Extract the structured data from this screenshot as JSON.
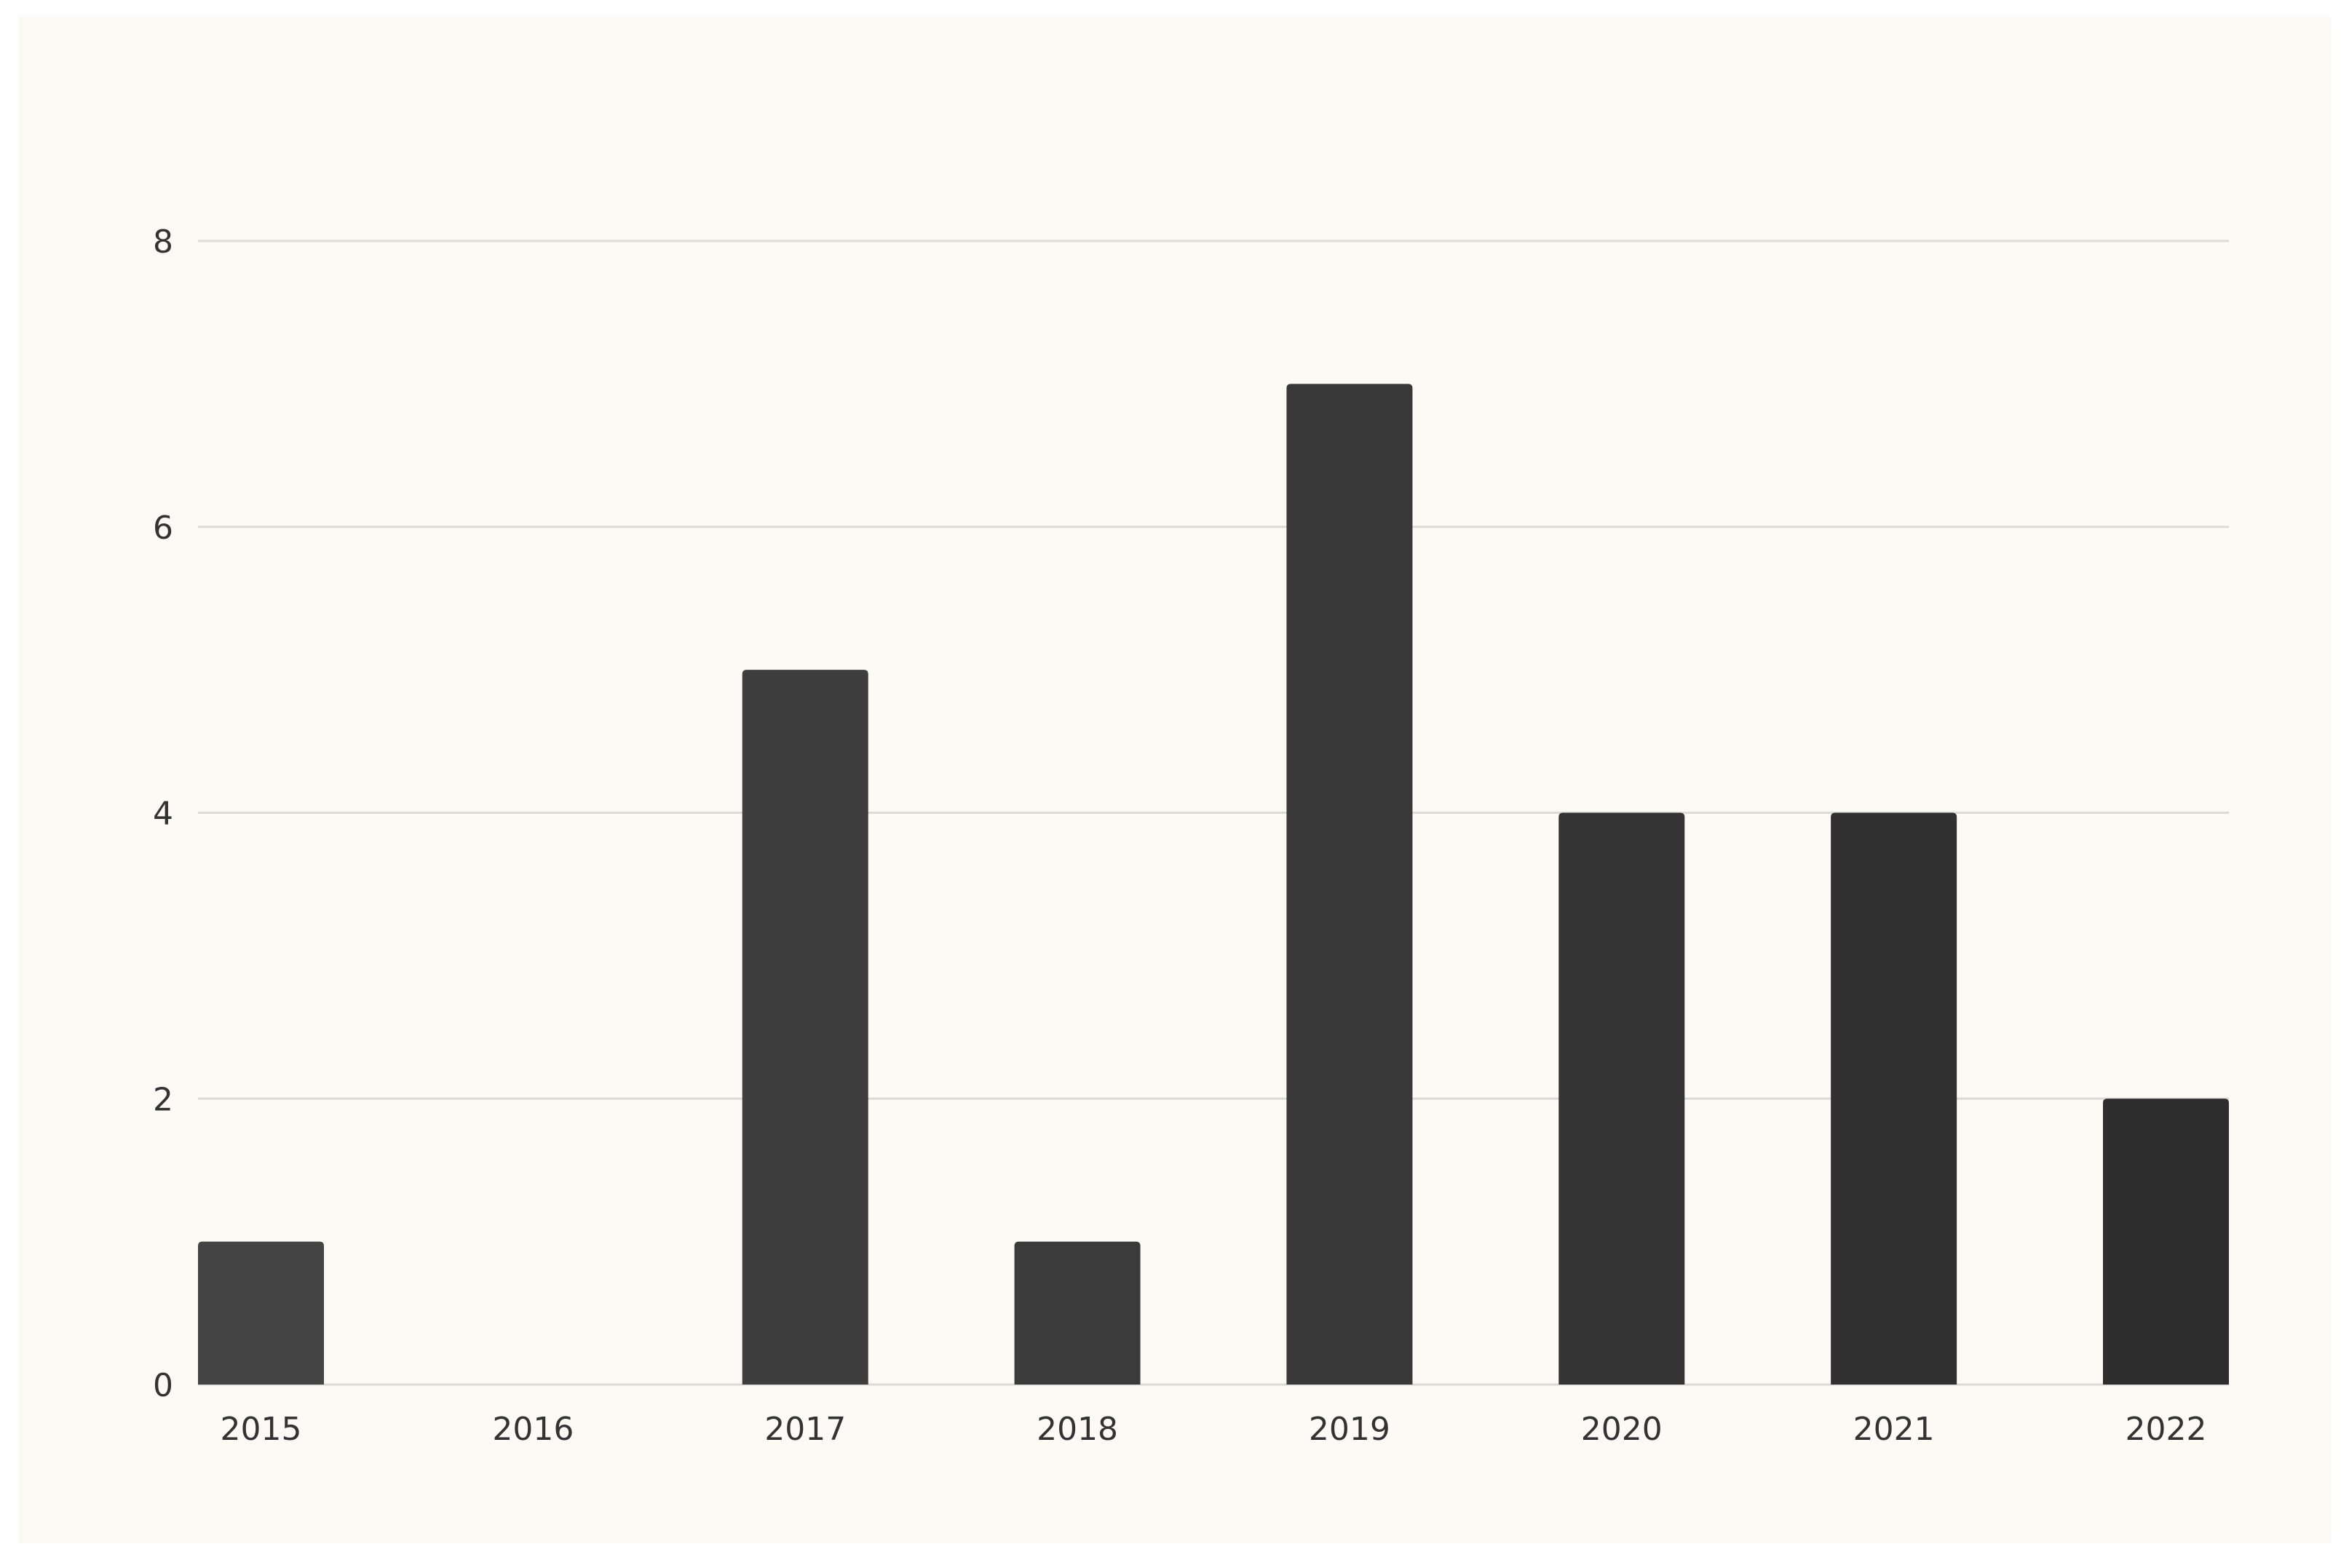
{
  "chart_data": {
    "type": "bar",
    "categories": [
      "2015",
      "2016",
      "2017",
      "2018",
      "2019",
      "2020",
      "2021",
      "2022"
    ],
    "values": [
      1,
      0,
      5,
      1,
      7,
      4,
      4,
      2
    ],
    "colors": [
      "#444444",
      "#414141",
      "#3e3e3e",
      "#3b3b3b",
      "#383838",
      "#343434",
      "#313131",
      "#2d2d2d"
    ],
    "ylim": [
      0,
      8
    ],
    "yticks": [
      0,
      2,
      4,
      6,
      8
    ],
    "grid": true
  }
}
